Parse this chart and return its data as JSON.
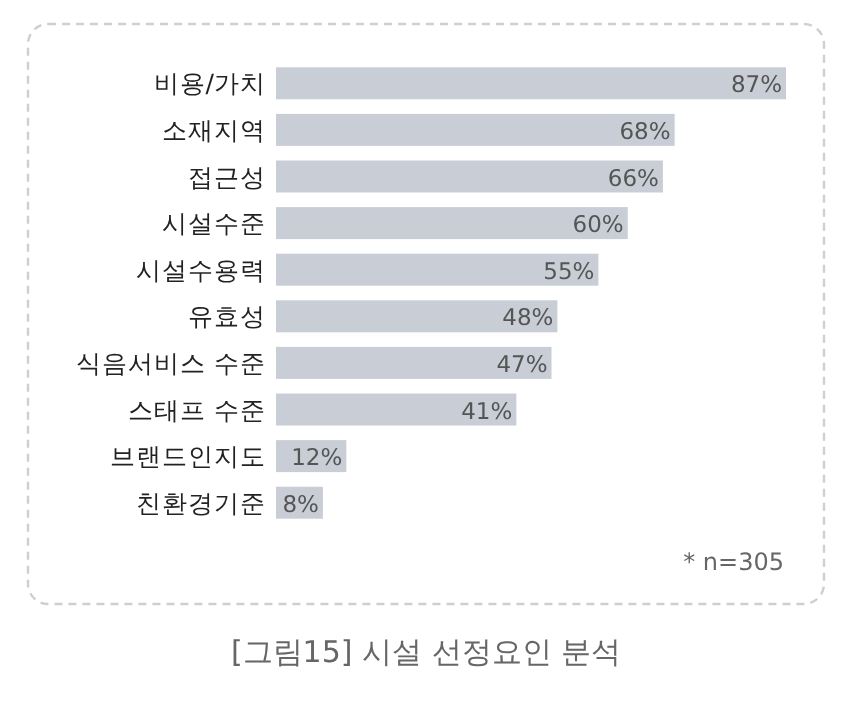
{
  "chart_data": {
    "type": "bar",
    "orientation": "horizontal",
    "title": "[그림15] 시설 선정요인 분석",
    "categories": [
      "비용/가치",
      "소재지역",
      "접근성",
      "시설수준",
      "시설수용력",
      "유효성",
      "식음서비스 수준",
      "스태프 수준",
      "브랜드인지도",
      "친환경기준"
    ],
    "values": [
      87,
      68,
      66,
      60,
      55,
      48,
      47,
      41,
      12,
      8
    ],
    "value_labels": [
      "87%",
      "68%",
      "66%",
      "60%",
      "55%",
      "48%",
      "47%",
      "41%",
      "12%",
      "8%"
    ],
    "color": "#c9ced6",
    "annotations": [
      "* n=305"
    ]
  }
}
